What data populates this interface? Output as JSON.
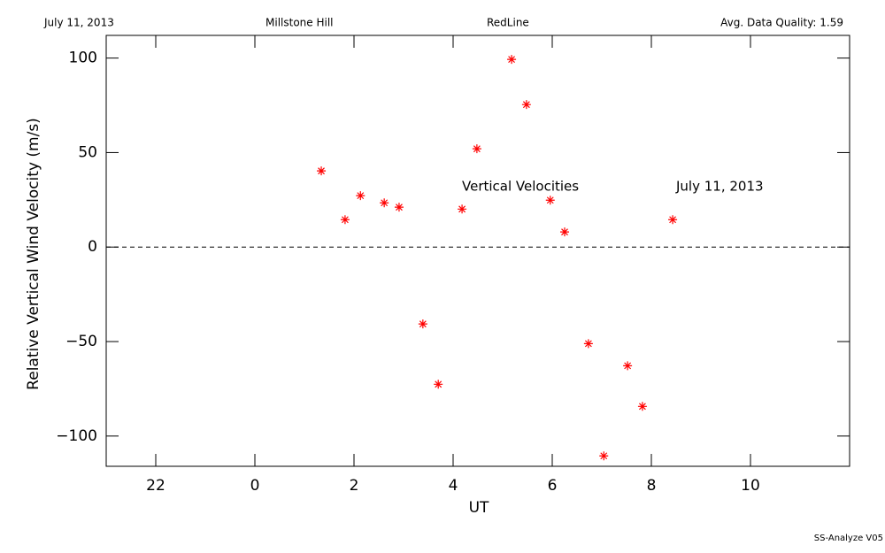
{
  "header": {
    "date": "July 11, 2013",
    "site": "Millstone Hill",
    "line": "RedLine",
    "quality": "Avg. Data Quality: 1.59"
  },
  "footer": "SS-Analyze V05",
  "chart_data": {
    "type": "scatter",
    "x_label": "UT",
    "y_label": "Relative Vertical Wind Velocity (m/s)",
    "annotations": [
      "Vertical Velocities",
      "July 11, 2013"
    ],
    "xlim": [
      -3,
      12
    ],
    "ylim": [
      -116,
      112
    ],
    "xticks": [
      {
        "value": -2,
        "label": "22"
      },
      0,
      2,
      4,
      6,
      8,
      10
    ],
    "yticks": [
      {
        "value": -100,
        "label": "−100"
      },
      {
        "value": -50,
        "label": "−50"
      },
      0,
      50,
      100
    ],
    "zero_line": 0,
    "color": "#ff0000",
    "x": [
      1.34,
      1.82,
      2.13,
      2.61,
      2.91,
      3.39,
      3.7,
      4.18,
      4.48,
      5.18,
      5.48,
      5.96,
      6.25,
      6.73,
      7.04,
      7.52,
      7.82,
      8.43
    ],
    "values": [
      40.3,
      14.5,
      27.2,
      23.4,
      21.1,
      -40.7,
      -72.6,
      20.1,
      52.0,
      99.3,
      75.4,
      24.8,
      8.0,
      -51.1,
      -110.5,
      -62.8,
      -84.3,
      14.5
    ]
  }
}
